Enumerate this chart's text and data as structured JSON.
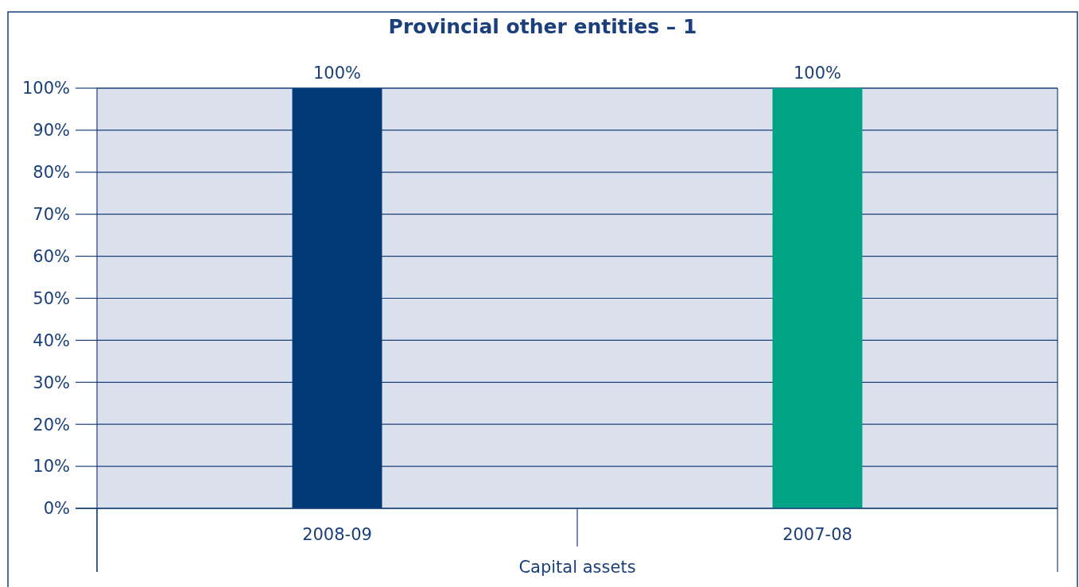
{
  "chart_data": {
    "type": "bar",
    "title": "Provincial other entities – 1",
    "xlabel": "Capital assets",
    "categories": [
      "2008-09",
      "2007-08"
    ],
    "values": [
      100,
      100
    ],
    "colors": [
      "#003a78",
      "#00a386"
    ],
    "value_labels": [
      "100%",
      "100%"
    ],
    "ylim": [
      0,
      100
    ],
    "yticks": [
      {
        "value": 0,
        "label": "0%"
      },
      {
        "value": 10,
        "label": "10%"
      },
      {
        "value": 20,
        "label": "20%"
      },
      {
        "value": 30,
        "label": "30%"
      },
      {
        "value": 40,
        "label": "40%"
      },
      {
        "value": 50,
        "label": "50%"
      },
      {
        "value": 60,
        "label": "60%"
      },
      {
        "value": 70,
        "label": "70%"
      },
      {
        "value": 80,
        "label": "80%"
      },
      {
        "value": 90,
        "label": "90%"
      },
      {
        "value": 100,
        "label": "100%"
      }
    ],
    "grid": "y"
  }
}
